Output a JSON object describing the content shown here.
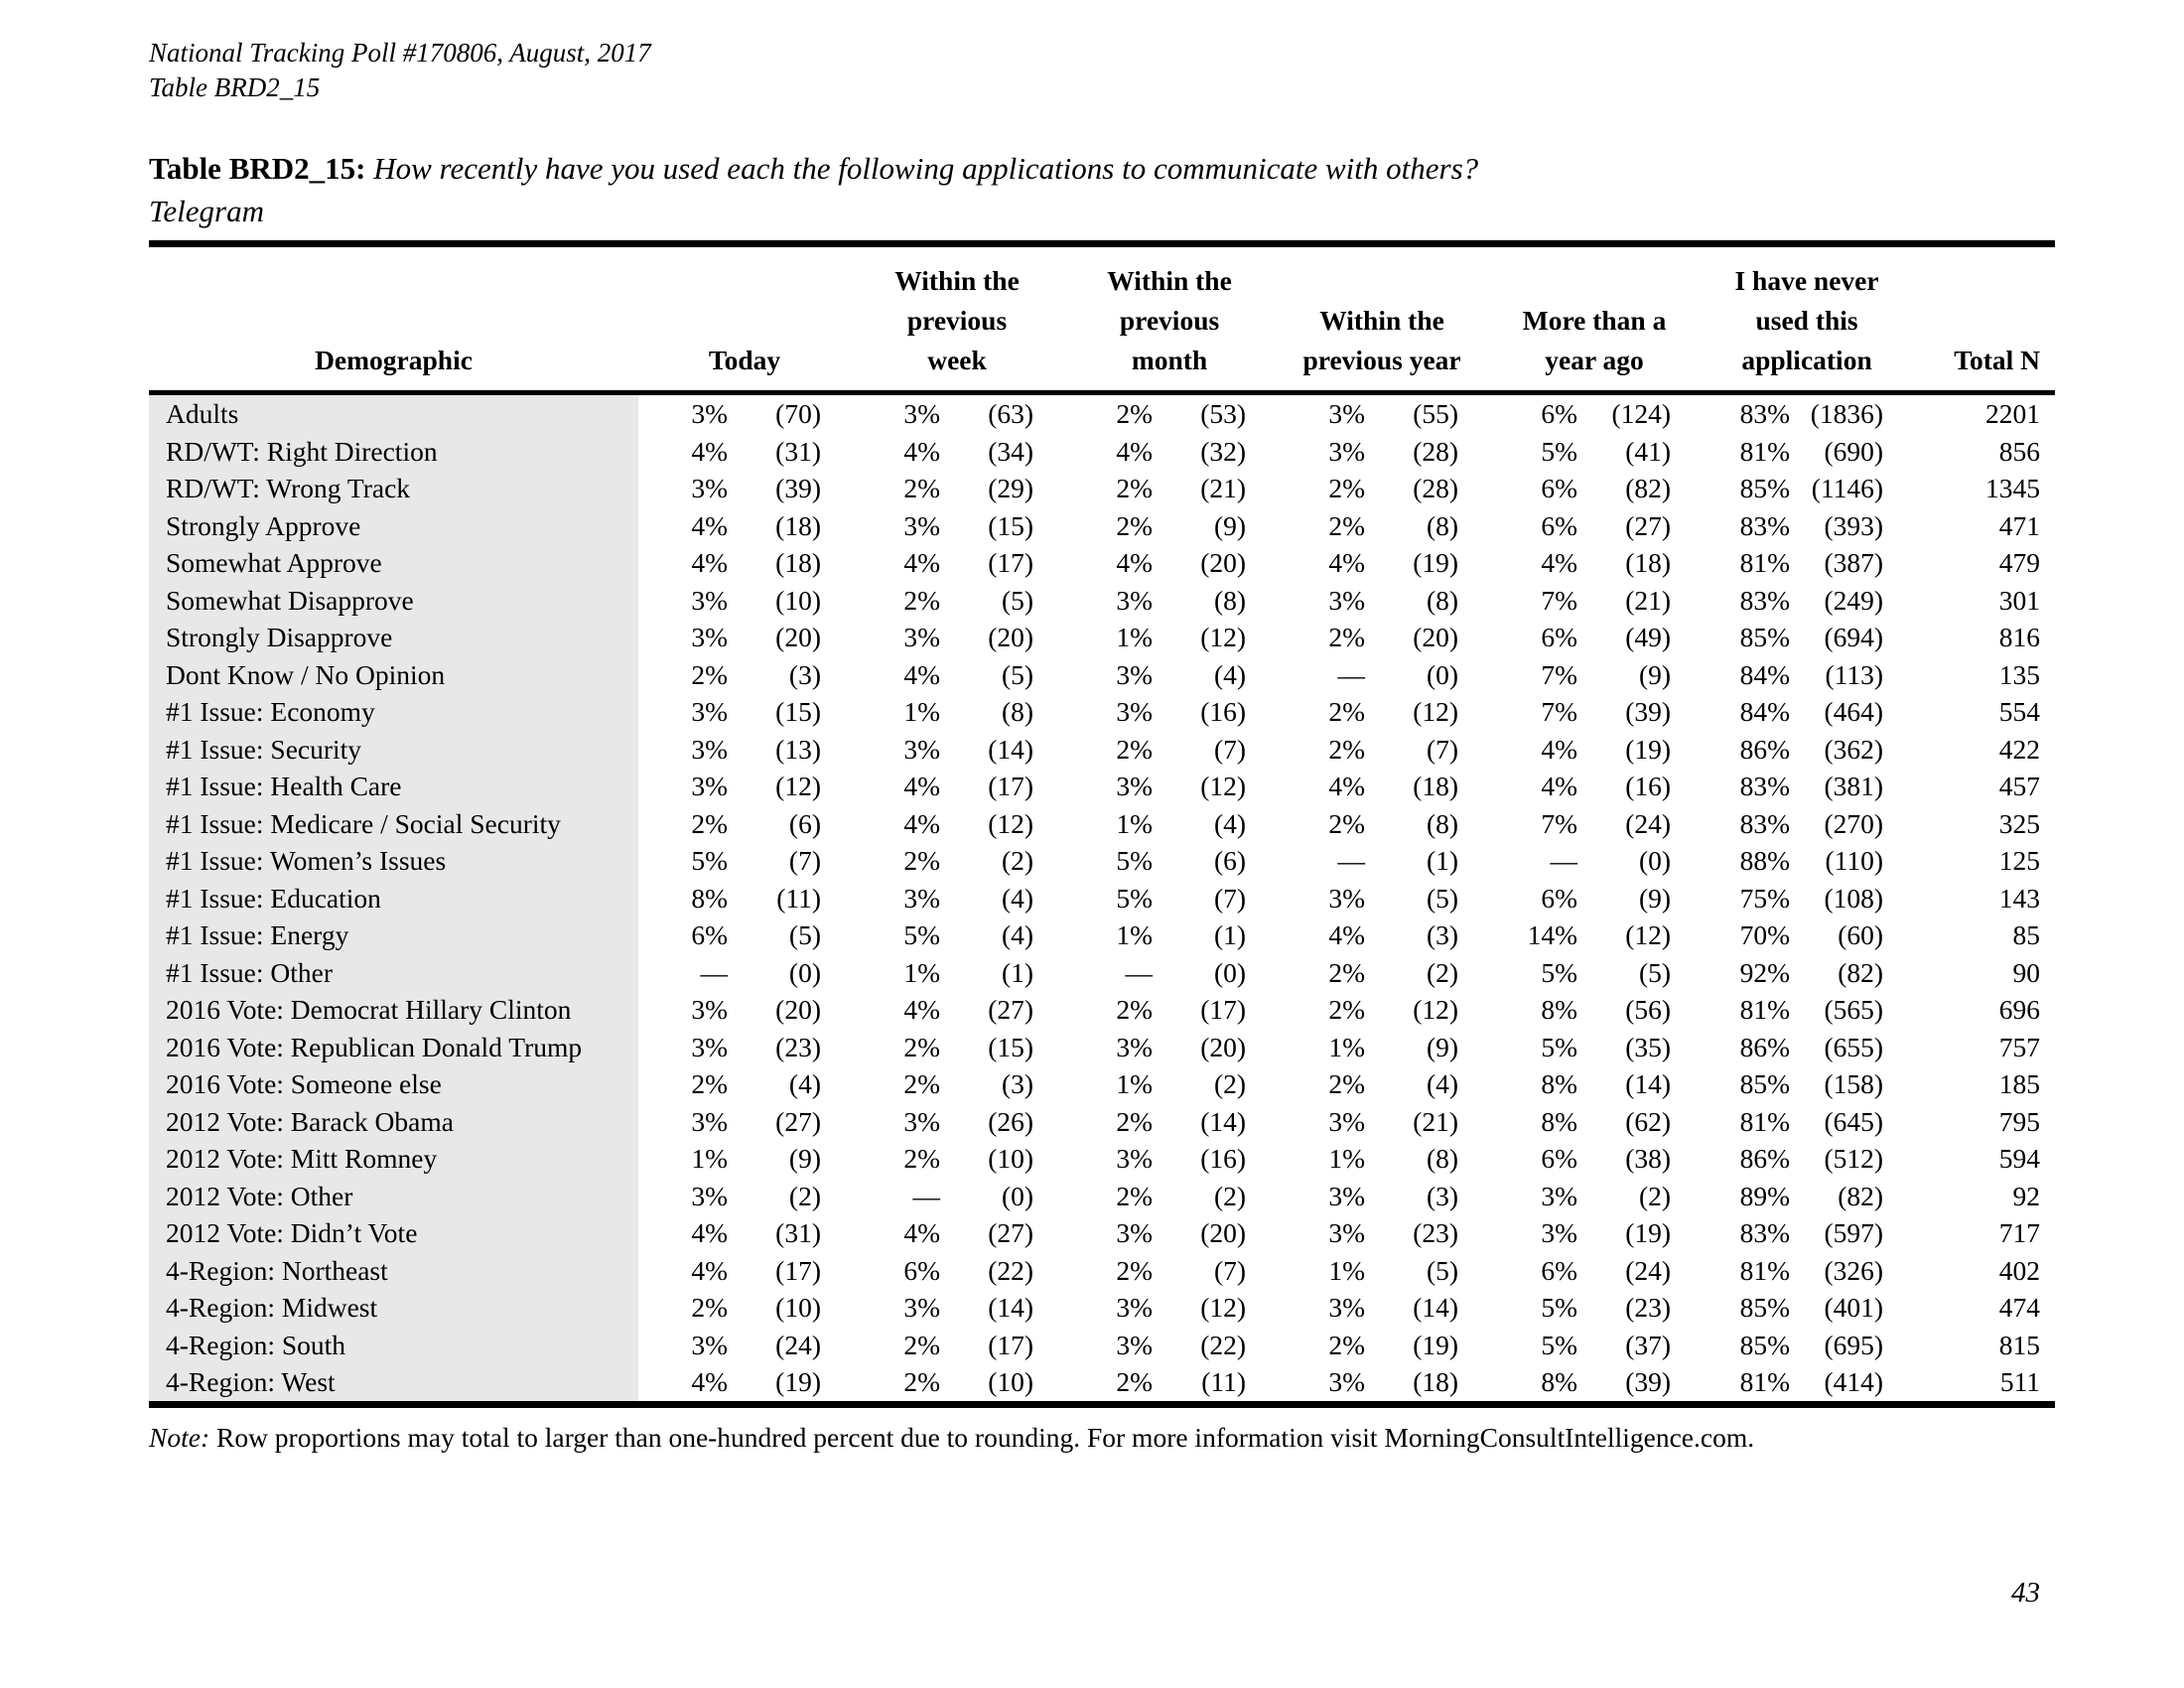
{
  "document": {
    "poll_line": "National Tracking Poll #170806, August, 2017",
    "table_ref": "Table BRD2_15",
    "title_label": "Table BRD2_15:",
    "title_question": "How recently have you used each the following applications to communicate with others?",
    "subject": "Telegram",
    "note_label": "Note:",
    "note_text": "Row proportions may total to larger than one-hundred percent due to rounding. For more information visit MorningConsultIntelligence.com.",
    "page_number": "43"
  },
  "colors": {
    "text": "#000000",
    "rule": "#000000",
    "demographic_column_bg": "#e8e8e8"
  },
  "table": {
    "columns": [
      "Demographic",
      "Today",
      "Within the\nprevious\nweek",
      "Within the\nprevious\nmonth",
      "Within the\nprevious year",
      "More than a\nyear ago",
      "I have never\nused this\napplication",
      "Total N"
    ],
    "rows": [
      {
        "demographic": "Adults",
        "values": [
          "3%",
          "(70)",
          "3%",
          "(63)",
          "2%",
          "(53)",
          "3%",
          "(55)",
          "6%",
          "(124)",
          "83%",
          "(1836)"
        ],
        "total_n": "2201"
      },
      {
        "demographic": "RD/WT: Right Direction",
        "values": [
          "4%",
          "(31)",
          "4%",
          "(34)",
          "4%",
          "(32)",
          "3%",
          "(28)",
          "5%",
          "(41)",
          "81%",
          "(690)"
        ],
        "total_n": "856"
      },
      {
        "demographic": "RD/WT: Wrong Track",
        "values": [
          "3%",
          "(39)",
          "2%",
          "(29)",
          "2%",
          "(21)",
          "2%",
          "(28)",
          "6%",
          "(82)",
          "85%",
          "(1146)"
        ],
        "total_n": "1345"
      },
      {
        "demographic": "Strongly Approve",
        "values": [
          "4%",
          "(18)",
          "3%",
          "(15)",
          "2%",
          "(9)",
          "2%",
          "(8)",
          "6%",
          "(27)",
          "83%",
          "(393)"
        ],
        "total_n": "471"
      },
      {
        "demographic": "Somewhat Approve",
        "values": [
          "4%",
          "(18)",
          "4%",
          "(17)",
          "4%",
          "(20)",
          "4%",
          "(19)",
          "4%",
          "(18)",
          "81%",
          "(387)"
        ],
        "total_n": "479"
      },
      {
        "demographic": "Somewhat Disapprove",
        "values": [
          "3%",
          "(10)",
          "2%",
          "(5)",
          "3%",
          "(8)",
          "3%",
          "(8)",
          "7%",
          "(21)",
          "83%",
          "(249)"
        ],
        "total_n": "301"
      },
      {
        "demographic": "Strongly Disapprove",
        "values": [
          "3%",
          "(20)",
          "3%",
          "(20)",
          "1%",
          "(12)",
          "2%",
          "(20)",
          "6%",
          "(49)",
          "85%",
          "(694)"
        ],
        "total_n": "816"
      },
      {
        "demographic": "Dont Know / No Opinion",
        "values": [
          "2%",
          "(3)",
          "4%",
          "(5)",
          "3%",
          "(4)",
          "—",
          "(0)",
          "7%",
          "(9)",
          "84%",
          "(113)"
        ],
        "total_n": "135"
      },
      {
        "demographic": "#1 Issue: Economy",
        "values": [
          "3%",
          "(15)",
          "1%",
          "(8)",
          "3%",
          "(16)",
          "2%",
          "(12)",
          "7%",
          "(39)",
          "84%",
          "(464)"
        ],
        "total_n": "554"
      },
      {
        "demographic": "#1 Issue: Security",
        "values": [
          "3%",
          "(13)",
          "3%",
          "(14)",
          "2%",
          "(7)",
          "2%",
          "(7)",
          "4%",
          "(19)",
          "86%",
          "(362)"
        ],
        "total_n": "422"
      },
      {
        "demographic": "#1 Issue: Health Care",
        "values": [
          "3%",
          "(12)",
          "4%",
          "(17)",
          "3%",
          "(12)",
          "4%",
          "(18)",
          "4%",
          "(16)",
          "83%",
          "(381)"
        ],
        "total_n": "457"
      },
      {
        "demographic": "#1 Issue: Medicare / Social Security",
        "values": [
          "2%",
          "(6)",
          "4%",
          "(12)",
          "1%",
          "(4)",
          "2%",
          "(8)",
          "7%",
          "(24)",
          "83%",
          "(270)"
        ],
        "total_n": "325"
      },
      {
        "demographic": "#1 Issue: Women’s Issues",
        "values": [
          "5%",
          "(7)",
          "2%",
          "(2)",
          "5%",
          "(6)",
          "—",
          "(1)",
          "—",
          "(0)",
          "88%",
          "(110)"
        ],
        "total_n": "125"
      },
      {
        "demographic": "#1 Issue: Education",
        "values": [
          "8%",
          "(11)",
          "3%",
          "(4)",
          "5%",
          "(7)",
          "3%",
          "(5)",
          "6%",
          "(9)",
          "75%",
          "(108)"
        ],
        "total_n": "143"
      },
      {
        "demographic": "#1 Issue: Energy",
        "values": [
          "6%",
          "(5)",
          "5%",
          "(4)",
          "1%",
          "(1)",
          "4%",
          "(3)",
          "14%",
          "(12)",
          "70%",
          "(60)"
        ],
        "total_n": "85"
      },
      {
        "demographic": "#1 Issue: Other",
        "values": [
          "—",
          "(0)",
          "1%",
          "(1)",
          "—",
          "(0)",
          "2%",
          "(2)",
          "5%",
          "(5)",
          "92%",
          "(82)"
        ],
        "total_n": "90"
      },
      {
        "demographic": "2016 Vote: Democrat Hillary Clinton",
        "values": [
          "3%",
          "(20)",
          "4%",
          "(27)",
          "2%",
          "(17)",
          "2%",
          "(12)",
          "8%",
          "(56)",
          "81%",
          "(565)"
        ],
        "total_n": "696"
      },
      {
        "demographic": "2016 Vote: Republican Donald Trump",
        "values": [
          "3%",
          "(23)",
          "2%",
          "(15)",
          "3%",
          "(20)",
          "1%",
          "(9)",
          "5%",
          "(35)",
          "86%",
          "(655)"
        ],
        "total_n": "757"
      },
      {
        "demographic": "2016 Vote: Someone else",
        "values": [
          "2%",
          "(4)",
          "2%",
          "(3)",
          "1%",
          "(2)",
          "2%",
          "(4)",
          "8%",
          "(14)",
          "85%",
          "(158)"
        ],
        "total_n": "185"
      },
      {
        "demographic": "2012 Vote: Barack Obama",
        "values": [
          "3%",
          "(27)",
          "3%",
          "(26)",
          "2%",
          "(14)",
          "3%",
          "(21)",
          "8%",
          "(62)",
          "81%",
          "(645)"
        ],
        "total_n": "795"
      },
      {
        "demographic": "2012 Vote: Mitt Romney",
        "values": [
          "1%",
          "(9)",
          "2%",
          "(10)",
          "3%",
          "(16)",
          "1%",
          "(8)",
          "6%",
          "(38)",
          "86%",
          "(512)"
        ],
        "total_n": "594"
      },
      {
        "demographic": "2012 Vote: Other",
        "values": [
          "3%",
          "(2)",
          "—",
          "(0)",
          "2%",
          "(2)",
          "3%",
          "(3)",
          "3%",
          "(2)",
          "89%",
          "(82)"
        ],
        "total_n": "92"
      },
      {
        "demographic": "2012 Vote: Didn’t Vote",
        "values": [
          "4%",
          "(31)",
          "4%",
          "(27)",
          "3%",
          "(20)",
          "3%",
          "(23)",
          "3%",
          "(19)",
          "83%",
          "(597)"
        ],
        "total_n": "717"
      },
      {
        "demographic": "4-Region: Northeast",
        "values": [
          "4%",
          "(17)",
          "6%",
          "(22)",
          "2%",
          "(7)",
          "1%",
          "(5)",
          "6%",
          "(24)",
          "81%",
          "(326)"
        ],
        "total_n": "402"
      },
      {
        "demographic": "4-Region: Midwest",
        "values": [
          "2%",
          "(10)",
          "3%",
          "(14)",
          "3%",
          "(12)",
          "3%",
          "(14)",
          "5%",
          "(23)",
          "85%",
          "(401)"
        ],
        "total_n": "474"
      },
      {
        "demographic": "4-Region: South",
        "values": [
          "3%",
          "(24)",
          "2%",
          "(17)",
          "3%",
          "(22)",
          "2%",
          "(19)",
          "5%",
          "(37)",
          "85%",
          "(695)"
        ],
        "total_n": "815"
      },
      {
        "demographic": "4-Region: West",
        "values": [
          "4%",
          "(19)",
          "2%",
          "(10)",
          "2%",
          "(11)",
          "3%",
          "(18)",
          "8%",
          "(39)",
          "81%",
          "(414)"
        ],
        "total_n": "511"
      }
    ]
  }
}
